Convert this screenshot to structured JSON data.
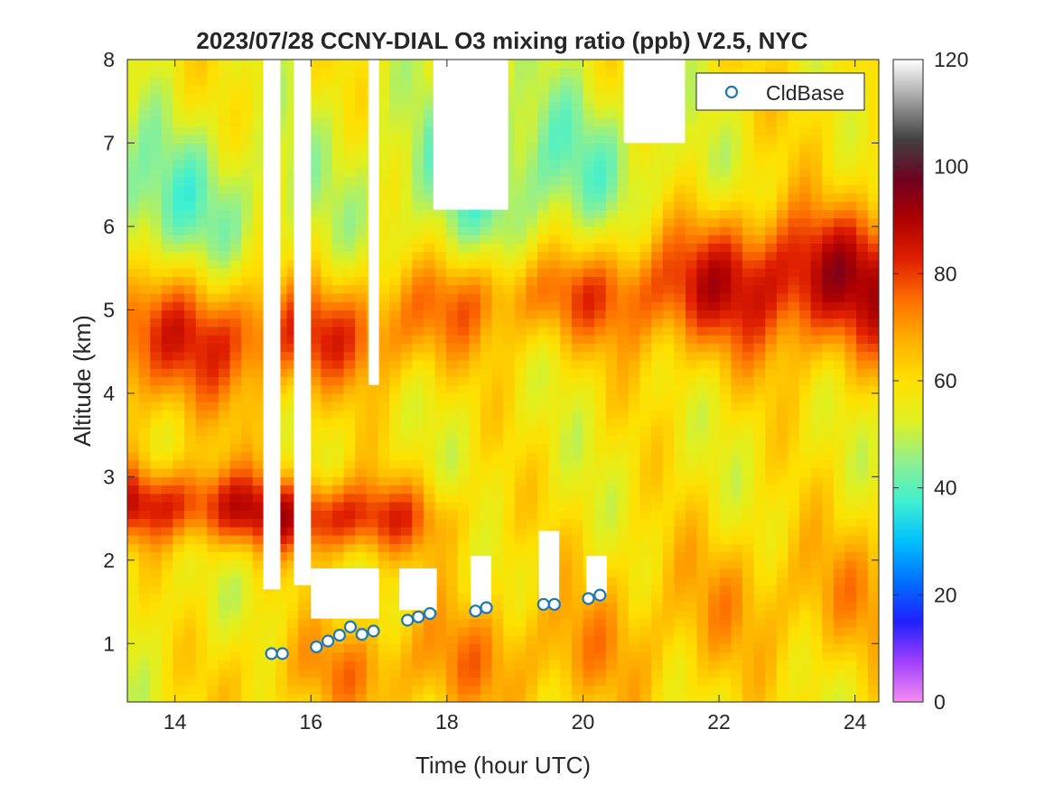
{
  "chart_data": {
    "type": "heatmap",
    "title": "2023/07/28 CCNY-DIAL O3 mixing ratio (ppb) V2.5, NYC",
    "xlabel": "Time (hour UTC)",
    "ylabel": "Altitude (km)",
    "xlim": [
      13.3,
      24.35
    ],
    "ylim": [
      0.3,
      8.0
    ],
    "x_ticks": [
      14,
      16,
      18,
      20,
      22,
      24
    ],
    "y_ticks": [
      1,
      2,
      3,
      4,
      5,
      6,
      7,
      8
    ],
    "colorbar": {
      "range": [
        0,
        120
      ],
      "ticks": [
        0,
        20,
        40,
        60,
        80,
        100,
        120
      ],
      "colormap": [
        "#f58cf0",
        "#a040ff",
        "#2020ff",
        "#0070ff",
        "#00c0ff",
        "#40f0d0",
        "#90f090",
        "#e0f020",
        "#ffe000",
        "#ffb000",
        "#ff7000",
        "#e02000",
        "#b00000",
        "#700020",
        "#404040",
        "#a0a0a0",
        "#ffffff"
      ]
    },
    "legend": {
      "entries": [
        "CldBase"
      ],
      "position": "top-right"
    },
    "cloud_base": {
      "name": "CldBase",
      "marker": "open-circle",
      "color": "#1f77b4",
      "points": [
        {
          "x": 15.42,
          "y": 0.88
        },
        {
          "x": 15.58,
          "y": 0.88
        },
        {
          "x": 16.08,
          "y": 0.96
        },
        {
          "x": 16.25,
          "y": 1.03
        },
        {
          "x": 16.42,
          "y": 1.1
        },
        {
          "x": 16.58,
          "y": 1.2
        },
        {
          "x": 16.75,
          "y": 1.11
        },
        {
          "x": 16.92,
          "y": 1.15
        },
        {
          "x": 17.42,
          "y": 1.28
        },
        {
          "x": 17.58,
          "y": 1.32
        },
        {
          "x": 17.75,
          "y": 1.36
        },
        {
          "x": 18.42,
          "y": 1.39
        },
        {
          "x": 18.58,
          "y": 1.43
        },
        {
          "x": 19.42,
          "y": 1.47
        },
        {
          "x": 19.58,
          "y": 1.47
        },
        {
          "x": 20.08,
          "y": 1.54
        },
        {
          "x": 20.25,
          "y": 1.58
        }
      ]
    },
    "ozone_field_bands": [
      {
        "x_range": [
          13.3,
          15.3
        ],
        "layers": [
          {
            "alt": [
              4.0,
              5.5
            ],
            "ppb": 82
          },
          {
            "alt": [
              2.4,
              2.9
            ],
            "ppb": 88
          },
          {
            "alt": [
              5.6,
              7.0
            ],
            "ppb": 42
          },
          {
            "alt": [
              0.3,
              2.0
            ],
            "ppb": 55
          }
        ]
      },
      {
        "x_range": [
          15.3,
          17.2
        ],
        "layers": [
          {
            "alt": [
              2.3,
              2.7
            ],
            "ppb": 95
          },
          {
            "alt": [
              4.3,
              5.0
            ],
            "ppb": 82
          },
          {
            "alt": [
              0.3,
              1.0
            ],
            "ppb": 72
          }
        ]
      },
      {
        "x_range": [
          17.2,
          21.0
        ],
        "layers": [
          {
            "alt": [
              4.9,
              5.6
            ],
            "ppb": 78
          },
          {
            "alt": [
              5.8,
              7.5
            ],
            "ppb": 40
          },
          {
            "alt": [
              0.3,
              1.4
            ],
            "ppb": 70
          }
        ]
      },
      {
        "x_range": [
          21.0,
          24.35
        ],
        "layers": [
          {
            "alt": [
              4.7,
              6.2
            ],
            "ppb": 90
          },
          {
            "alt": [
              1.0,
              2.2
            ],
            "ppb": 68
          },
          {
            "alt": [
              6.5,
              8.0
            ],
            "ppb": 60
          }
        ]
      }
    ],
    "gaps_no_data": [
      {
        "x": [
          15.3,
          15.55
        ],
        "alt": [
          1.65,
          8.0
        ]
      },
      {
        "x": [
          15.75,
          16.0
        ],
        "alt": [
          1.7,
          8.0
        ]
      },
      {
        "x": [
          16.0,
          17.0
        ],
        "alt": [
          1.3,
          1.9
        ]
      },
      {
        "x": [
          16.85,
          17.0
        ],
        "alt": [
          4.1,
          8.0
        ]
      },
      {
        "x": [
          17.3,
          17.85
        ],
        "alt": [
          1.4,
          1.9
        ]
      },
      {
        "x": [
          18.35,
          18.65
        ],
        "alt": [
          1.45,
          2.05
        ]
      },
      {
        "x": [
          19.35,
          19.65
        ],
        "alt": [
          1.5,
          2.35
        ]
      },
      {
        "x": [
          20.05,
          20.35
        ],
        "alt": [
          1.6,
          2.05
        ]
      },
      {
        "x": [
          17.8,
          18.9
        ],
        "alt": [
          6.2,
          8.0
        ]
      },
      {
        "x": [
          20.6,
          21.5
        ],
        "alt": [
          7.0,
          8.0
        ]
      }
    ]
  }
}
